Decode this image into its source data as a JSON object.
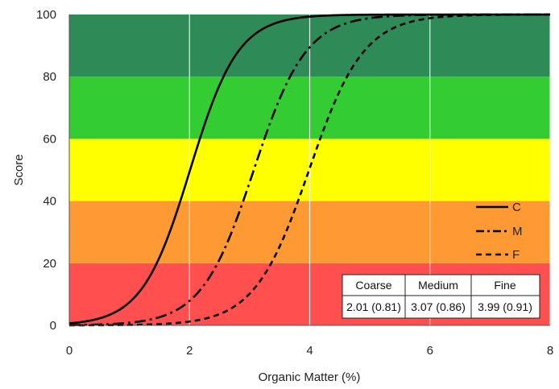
{
  "chart_data": {
    "type": "line",
    "title": "",
    "xlabel": "Organic Matter (%)",
    "ylabel": "Score",
    "xlim": [
      0,
      8
    ],
    "ylim": [
      0,
      100
    ],
    "x_ticks": [
      "0",
      "2",
      "4",
      "6",
      "8"
    ],
    "y_ticks": [
      "0",
      "20",
      "40",
      "60",
      "80",
      "100"
    ],
    "grid": "vertical",
    "background_bands": [
      {
        "from": 0,
        "to": 20,
        "color": "#ff4f4f"
      },
      {
        "from": 20,
        "to": 40,
        "color": "#ff9933"
      },
      {
        "from": 40,
        "to": 60,
        "color": "#ffff00"
      },
      {
        "from": 60,
        "to": 80,
        "color": "#33cc33"
      },
      {
        "from": 80,
        "to": 100,
        "color": "#2e8b57"
      }
    ],
    "series": [
      {
        "name": "C",
        "dash": "solid",
        "color": "#000000",
        "midpoint": 2.01,
        "slope": 2.5
      },
      {
        "name": "M",
        "dash": "dash-dot",
        "color": "#000000",
        "midpoint": 3.07,
        "slope": 2.3
      },
      {
        "name": "F",
        "dash": "dashed",
        "color": "#000000",
        "midpoint": 3.99,
        "slope": 2.2
      }
    ],
    "legend": {
      "position": "right",
      "entries": [
        "C",
        "M",
        "F"
      ]
    },
    "inset_table": {
      "headers": [
        "Coarse",
        "Medium",
        "Fine"
      ],
      "values": [
        "2.01 (0.81)",
        "3.07 (0.86)",
        "3.99 (0.91)"
      ]
    }
  }
}
